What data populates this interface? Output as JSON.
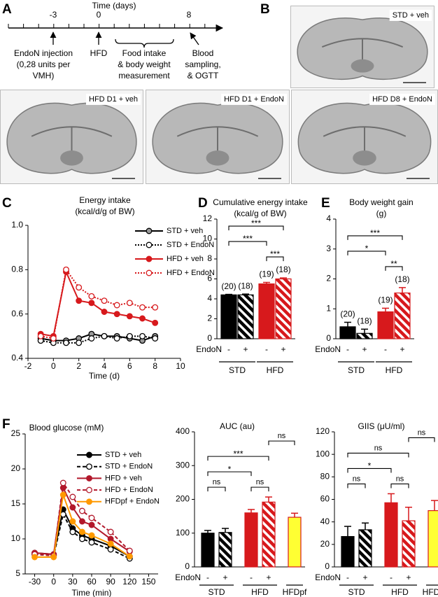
{
  "panel_labels": [
    "A",
    "B",
    "C",
    "D",
    "E",
    "F"
  ],
  "timeline": {
    "title": "Time (days)",
    "tick_labels": [
      -3,
      0,
      8
    ],
    "events": [
      [
        "EndoN injection",
        "(0,28 units per",
        "VMH)"
      ],
      [
        "HFD"
      ],
      [
        "Food intake",
        "& body weight",
        "measurement"
      ],
      [
        "Blood",
        "sampling,",
        "& OGTT"
      ]
    ]
  },
  "images": [
    "STD + veh",
    "HFD D1 + veh",
    "HFD D1 + EndoN",
    "HFD D8 + EndoN"
  ],
  "chart_data": [
    {
      "type": "line",
      "title": "Energy  intake",
      "subtitle": "(kcal/d/g of BW)",
      "x_label": "Time (d)",
      "x": [
        -1,
        0,
        1,
        2,
        3,
        4,
        5,
        6,
        7,
        8
      ],
      "xlim": [
        -2,
        10
      ],
      "xticks": [
        -2,
        0,
        2,
        4,
        6,
        8,
        10
      ],
      "ylim": [
        0.4,
        1
      ],
      "yticks": [
        0.4,
        0.6,
        0.8,
        {
          "value": 1,
          "label": "1.0"
        }
      ],
      "series": [
        {
          "name": "STD + veh",
          "color": "#000000",
          "marker_fill": "#999999",
          "dash": "solid",
          "values": [
            0.49,
            0.48,
            0.48,
            0.49,
            0.51,
            0.5,
            0.5,
            0.49,
            0.48,
            0.5
          ]
        },
        {
          "name": "STD + EndoN",
          "color": "#000000",
          "marker_fill": "white",
          "dash": "dotted",
          "values": [
            0.48,
            0.47,
            0.47,
            0.47,
            0.49,
            0.5,
            0.49,
            0.5,
            0.5,
            0.49
          ]
        },
        {
          "name": "HFD + veh",
          "color": "#d7191c",
          "marker_fill": "#d7191c",
          "dash": "solid",
          "values": [
            0.51,
            0.5,
            0.79,
            0.66,
            0.65,
            0.61,
            0.6,
            0.59,
            0.58,
            0.56
          ]
        },
        {
          "name": "HFD + EndoN",
          "color": "#d7191c",
          "marker_fill": "white",
          "dash": "dotted",
          "values": [
            0.5,
            0.49,
            0.8,
            0.72,
            0.68,
            0.66,
            0.64,
            0.65,
            0.63,
            0.63
          ]
        }
      ]
    },
    {
      "type": "bar",
      "title": "Cumulative energy intake",
      "subtitle": "(kcal/g of BW)",
      "x_label": "EndoN",
      "categories": [
        "-",
        "+",
        "-",
        "+"
      ],
      "groups": [
        "STD",
        "HFD"
      ],
      "values": [
        4.4,
        4.4,
        5.5,
        6.0
      ],
      "errors": [
        0.05,
        0.08,
        0.15,
        0.1
      ],
      "colors": [
        "#000000",
        "#000000",
        "#d7191c",
        "#d7191c"
      ],
      "hatched": [
        false,
        true,
        false,
        true
      ],
      "n_labels": [
        "(20)",
        "(18)",
        "(19)",
        "(18)"
      ],
      "brackets": [
        {
          "label": "***",
          "bars": [
            2,
            3
          ]
        },
        {
          "label": "***",
          "bars": [
            0,
            2
          ]
        },
        {
          "label": "***",
          "bars": [
            0,
            3
          ]
        }
      ],
      "ylim": [
        0,
        12
      ],
      "yticks": [
        0,
        2,
        4,
        6,
        8,
        10,
        12
      ]
    },
    {
      "type": "bar",
      "title": "Body weight gain",
      "subtitle": "(g)",
      "x_label": "EndoN",
      "categories": [
        "-",
        "+",
        "-",
        "+"
      ],
      "groups": [
        "STD",
        "HFD"
      ],
      "values": [
        0.4,
        0.18,
        0.9,
        1.53
      ],
      "errors": [
        0.15,
        0.14,
        0.12,
        0.18
      ],
      "colors": [
        "#000000",
        "#000000",
        "#d7191c",
        "#d7191c"
      ],
      "hatched": [
        false,
        true,
        false,
        true
      ],
      "n_labels": [
        "(20)",
        "(18)",
        "(19)",
        "(18)"
      ],
      "brackets": [
        {
          "label": "**",
          "bars": [
            2,
            3
          ]
        },
        {
          "label": "*",
          "bars": [
            0,
            2
          ]
        },
        {
          "label": "***",
          "bars": [
            0,
            3
          ]
        }
      ],
      "ylim": [
        0,
        4
      ],
      "yticks": [
        0,
        1,
        2,
        3,
        4
      ]
    },
    {
      "type": "line",
      "title": "Blood glucose (mM)",
      "x_label": "Time (min)",
      "x": [
        -30,
        0,
        15,
        30,
        45,
        60,
        90,
        120
      ],
      "xlim": [
        -45,
        165
      ],
      "xticks": [
        -30,
        0,
        30,
        60,
        90,
        120,
        150
      ],
      "ylim": [
        5,
        25
      ],
      "yticks": [
        5,
        10,
        15,
        20,
        25
      ],
      "series": [
        {
          "name": "STD + veh",
          "color": "#000000",
          "marker_fill": "#000000",
          "dash": "solid",
          "values": [
            8.0,
            7.8,
            14.2,
            11.5,
            10.5,
            10.0,
            9.0,
            7.5
          ]
        },
        {
          "name": "STD + EndoN",
          "color": "#000000",
          "marker_fill": "white",
          "dash": "dashed",
          "values": [
            7.8,
            7.6,
            13.5,
            11.0,
            10.0,
            9.5,
            8.5,
            7.2
          ]
        },
        {
          "name": "HFD + veh",
          "color": "#b2182b",
          "marker_fill": "#b2182b",
          "dash": "solid",
          "values": [
            8.0,
            7.8,
            17.3,
            14.5,
            12.5,
            12.0,
            10.0,
            8.2
          ]
        },
        {
          "name": "HFD + EndoN",
          "color": "#b2182b",
          "marker_fill": "white",
          "dash": "dashed",
          "values": [
            7.8,
            7.6,
            18.0,
            16.0,
            14.0,
            13.0,
            11.0,
            8.3
          ]
        },
        {
          "name": "HFDpf + EndoN",
          "color": "#ff9900",
          "marker_fill": "#ff9900",
          "dash": "solid",
          "values": [
            7.4,
            7.4,
            16.3,
            12.5,
            11.0,
            10.5,
            9.3,
            7.5
          ]
        }
      ]
    },
    {
      "type": "bar",
      "title": "AUC (au)",
      "x_label": "EndoN",
      "categories": [
        "-",
        "+",
        "-",
        "+",
        null
      ],
      "groups": [
        "STD",
        "HFD",
        "HFDpf"
      ],
      "values": [
        100,
        102,
        160,
        192,
        147
      ],
      "errors": [
        8,
        12,
        10,
        15,
        12
      ],
      "colors": [
        "#000000",
        "#000000",
        "#d7191c",
        "#d7191c",
        "#ffff33"
      ],
      "hatched": [
        false,
        true,
        false,
        true,
        false
      ],
      "brackets": [
        {
          "label": "ns",
          "bars": [
            0,
            1
          ]
        },
        {
          "label": "ns",
          "bars": [
            2,
            3
          ]
        },
        {
          "label": "*",
          "bars": [
            0,
            2
          ]
        },
        {
          "label": "***",
          "bars": [
            0,
            3
          ]
        },
        {
          "label": "ns",
          "bars": [
            3,
            4
          ]
        }
      ],
      "ylim": [
        0,
        400
      ],
      "yticks": [
        0,
        100,
        200,
        300,
        400
      ]
    },
    {
      "type": "bar",
      "title": "GIIS (μU/ml)",
      "x_label": "EndoN",
      "categories": [
        "-",
        "+",
        "-",
        "+",
        null
      ],
      "groups": [
        "STD",
        "HFD",
        "HFDpf"
      ],
      "values": [
        27,
        33,
        57,
        41,
        50
      ],
      "errors": [
        9,
        6,
        8,
        12,
        9
      ],
      "colors": [
        "#000000",
        "#000000",
        "#d7191c",
        "#d7191c",
        "#ffff33"
      ],
      "hatched": [
        false,
        true,
        false,
        true,
        false
      ],
      "brackets": [
        {
          "label": "ns",
          "bars": [
            0,
            1
          ]
        },
        {
          "label": "ns",
          "bars": [
            2,
            3
          ]
        },
        {
          "label": "*",
          "bars": [
            0,
            2
          ]
        },
        {
          "label": "ns",
          "bars": [
            0,
            3
          ]
        },
        {
          "label": "ns",
          "bars": [
            3,
            4
          ]
        }
      ],
      "ylim": [
        0,
        120
      ],
      "yticks": [
        0,
        20,
        40,
        60,
        80,
        100,
        120
      ]
    }
  ]
}
